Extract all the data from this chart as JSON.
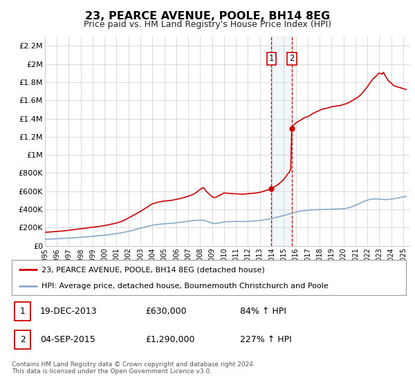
{
  "title": "23, PEARCE AVENUE, POOLE, BH14 8EG",
  "subtitle": "Price paid vs. HM Land Registry's House Price Index (HPI)",
  "title_fontsize": 11.5,
  "subtitle_fontsize": 9,
  "ylim": [
    0,
    2300000
  ],
  "yticks": [
    0,
    200000,
    400000,
    600000,
    800000,
    1000000,
    1200000,
    1400000,
    1600000,
    1800000,
    2000000,
    2200000
  ],
  "ytick_labels": [
    "£0",
    "£200K",
    "£400K",
    "£600K",
    "£800K",
    "£1M",
    "£1.2M",
    "£1.4M",
    "£1.6M",
    "£1.8M",
    "£2M",
    "£2.2M"
  ],
  "xlim_start": 1995.0,
  "xlim_end": 2025.5,
  "xtick_years": [
    1995,
    1996,
    1997,
    1998,
    1999,
    2000,
    2001,
    2002,
    2003,
    2004,
    2005,
    2006,
    2007,
    2008,
    2009,
    2010,
    2011,
    2012,
    2013,
    2014,
    2015,
    2016,
    2017,
    2018,
    2019,
    2020,
    2021,
    2022,
    2023,
    2024,
    2025
  ],
  "red_line_color": "#cc0000",
  "blue_line_color": "#88aacc",
  "grid_color": "#cccccc",
  "bg_color": "#ffffff",
  "sale1_x": 2013.96,
  "sale1_y": 630000,
  "sale2_x": 2015.67,
  "sale2_y": 1290000,
  "vline1_x": 2013.96,
  "vline2_x": 2015.67,
  "shade_x1": 2013.96,
  "shade_x2": 2015.67,
  "legend_line1": "23, PEARCE AVENUE, POOLE, BH14 8EG (detached house)",
  "legend_line2": "HPI: Average price, detached house, Bournemouth Christchurch and Poole",
  "label1_date": "19-DEC-2013",
  "label1_price": "£630,000",
  "label1_hpi": "84% ↑ HPI",
  "label2_date": "04-SEP-2015",
  "label2_price": "£1,290,000",
  "label2_hpi": "227% ↑ HPI",
  "footer1": "Contains HM Land Registry data © Crown copyright and database right 2024.",
  "footer2": "This data is licensed under the Open Government Licence v3.0."
}
